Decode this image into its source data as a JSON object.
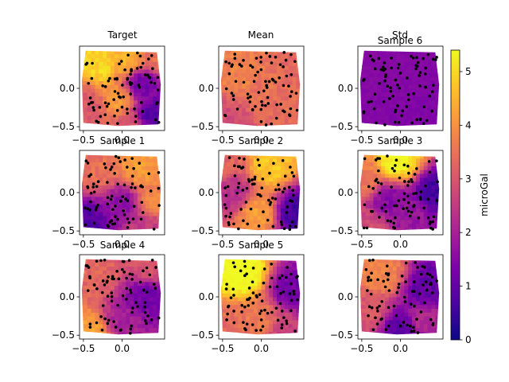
{
  "chart_data": {
    "type": "heatmap",
    "colormap": "plasma",
    "colorbar": {
      "label": "microGal",
      "range": [
        0,
        5.4
      ],
      "ticks": [
        0,
        1,
        2,
        3,
        4,
        5
      ],
      "tick_labels": [
        "0",
        "1",
        "2",
        "3",
        "4",
        "5"
      ]
    },
    "grid": "off",
    "subplots": [
      {
        "title": "Target",
        "xlim": [
          -0.55,
          0.55
        ],
        "ylim": [
          -0.55,
          0.55
        ],
        "xticks": [
          -0.5,
          0.0
        ],
        "xtick_labels": [
          "−0.5",
          "0.0"
        ],
        "yticks": [
          0.0,
          -0.5
        ],
        "ytick_labels": [
          "0.0",
          "−0.5"
        ],
        "field": [
          [
            -0.3,
            0.3,
            5.0
          ],
          [
            0.05,
            0.4,
            4.5
          ],
          [
            -0.05,
            -0.15,
            4.2
          ],
          [
            0.25,
            0.05,
            1.2
          ],
          [
            0.35,
            -0.35,
            0.8
          ],
          [
            -0.45,
            -0.2,
            3.0
          ],
          [
            0.1,
            -0.45,
            3.0
          ],
          [
            0.45,
            0.45,
            3.5
          ]
        ]
      },
      {
        "title": "Mean",
        "xlim": [
          -0.55,
          0.55
        ],
        "ylim": [
          -0.55,
          0.55
        ],
        "xticks": [
          -0.5,
          0.0
        ],
        "xtick_labels": [
          "−0.5",
          "0.0"
        ],
        "yticks": [
          0.0,
          -0.5
        ],
        "ytick_labels": [
          "0.0",
          "−0.5"
        ],
        "field": [
          [
            -0.2,
            0.2,
            3.8
          ],
          [
            0.2,
            -0.2,
            3.4
          ],
          [
            0.0,
            0.0,
            3.5
          ],
          [
            -0.4,
            -0.45,
            2.8
          ],
          [
            0.4,
            0.4,
            3.3
          ]
        ]
      },
      {
        "title": "Std",
        "xlim": [
          -0.55,
          0.55
        ],
        "ylim": [
          -0.55,
          0.55
        ],
        "xticks": [
          -0.5,
          0.0
        ],
        "xtick_labels": [
          "−0.5",
          "0.0"
        ],
        "yticks": [
          0.0,
          -0.5
        ],
        "ytick_labels": [
          "0.0",
          "−0.5"
        ],
        "field": [
          [
            0.0,
            0.0,
            1.45
          ],
          [
            -0.3,
            0.3,
            1.5
          ],
          [
            0.3,
            -0.3,
            1.4
          ]
        ]
      },
      {
        "title": "Sample 6",
        "xlim": [
          -0.55,
          0.55
        ],
        "ylim": [
          -0.55,
          0.55
        ],
        "xticks": [],
        "xtick_labels": [],
        "yticks": [],
        "ytick_labels": [],
        "field": []
      },
      {
        "title": "Sample 1",
        "xlim": [
          -0.55,
          0.55
        ],
        "ylim": [
          -0.55,
          0.55
        ],
        "xticks": [
          -0.5,
          0.0
        ],
        "xtick_labels": [
          "−0.5",
          "0.0"
        ],
        "yticks": [
          0.0,
          -0.5
        ],
        "ytick_labels": [
          "0.0",
          "−0.5"
        ],
        "field": [
          [
            0.2,
            0.35,
            4.2
          ],
          [
            -0.45,
            -0.4,
            0.8
          ],
          [
            0.0,
            -0.15,
            1.6
          ],
          [
            -0.3,
            0.3,
            3.5
          ],
          [
            0.4,
            -0.1,
            3.8
          ],
          [
            0.3,
            -0.45,
            2.5
          ]
        ]
      },
      {
        "title": "Sample 2",
        "xlim": [
          -0.55,
          0.55
        ],
        "ylim": [
          -0.55,
          0.55
        ],
        "xticks": [
          -0.5,
          0.0
        ],
        "xtick_labels": [
          "−0.5",
          "0.0"
        ],
        "yticks": [
          0.0,
          -0.5
        ],
        "ytick_labels": [
          "0.0",
          "−0.5"
        ],
        "field": [
          [
            0.1,
            0.35,
            4.8
          ],
          [
            -0.05,
            -0.25,
            4.2
          ],
          [
            0.45,
            -0.25,
            0.6
          ],
          [
            -0.35,
            0.0,
            2.2
          ],
          [
            -0.4,
            0.4,
            3.3
          ]
        ]
      },
      {
        "title": "Sample 3",
        "xlim": [
          -0.55,
          0.55
        ],
        "ylim": [
          -0.55,
          0.55
        ],
        "xticks": [
          -0.5,
          0.0
        ],
        "xtick_labels": [
          "−0.5",
          "0.0"
        ],
        "yticks": [
          0.0,
          -0.5
        ],
        "ytick_labels": [
          "0.0",
          "−0.5"
        ],
        "field": [
          [
            -0.05,
            0.42,
            5.4
          ],
          [
            0.45,
            0.0,
            0.6
          ],
          [
            -0.15,
            -0.1,
            1.5
          ],
          [
            -0.4,
            -0.45,
            2.8
          ],
          [
            0.2,
            -0.35,
            1.8
          ],
          [
            -0.45,
            0.2,
            3.6
          ]
        ]
      },
      {
        "title": "Sample 4",
        "xlim": [
          -0.55,
          0.55
        ],
        "ylim": [
          -0.55,
          0.55
        ],
        "xticks": [
          -0.5,
          0.0
        ],
        "xtick_labels": [
          "−0.5",
          "0.0"
        ],
        "yticks": [
          0.0,
          -0.5
        ],
        "ytick_labels": [
          "0.0",
          "−0.5"
        ],
        "field": [
          [
            -0.4,
            -0.45,
            4.2
          ],
          [
            0.3,
            0.0,
            1.2
          ],
          [
            -0.3,
            0.3,
            3.3
          ],
          [
            0.0,
            -0.3,
            2.0
          ],
          [
            0.35,
            0.42,
            3.0
          ]
        ]
      },
      {
        "title": "Sample 5",
        "xlim": [
          -0.55,
          0.55
        ],
        "ylim": [
          -0.55,
          0.55
        ],
        "xticks": [
          -0.5,
          0.0
        ],
        "xtick_labels": [
          "−0.5",
          "0.0"
        ],
        "yticks": [
          0.0,
          -0.5
        ],
        "ytick_labels": [
          "0.0",
          "−0.5"
        ],
        "field": [
          [
            -0.25,
            0.3,
            5.6
          ],
          [
            0.0,
            -0.3,
            3.6
          ],
          [
            0.4,
            0.1,
            1.2
          ],
          [
            -0.45,
            -0.35,
            3.4
          ],
          [
            0.3,
            -0.45,
            2.6
          ]
        ]
      },
      {
        "title": "",
        "xlim": [
          -0.55,
          0.55
        ],
        "ylim": [
          -0.55,
          0.55
        ],
        "xticks": [
          -0.5,
          0.0
        ],
        "xtick_labels": [
          "−0.5",
          "0.0"
        ],
        "yticks": [
          0.0,
          -0.5
        ],
        "ytick_labels": [
          "0.0",
          "−0.5"
        ],
        "field": [
          [
            -0.25,
            0.3,
            3.8
          ],
          [
            0.35,
            0.1,
            1.0
          ],
          [
            0.0,
            -0.4,
            0.9
          ],
          [
            -0.4,
            -0.2,
            3.0
          ],
          [
            0.3,
            -0.3,
            2.2
          ]
        ]
      }
    ]
  }
}
